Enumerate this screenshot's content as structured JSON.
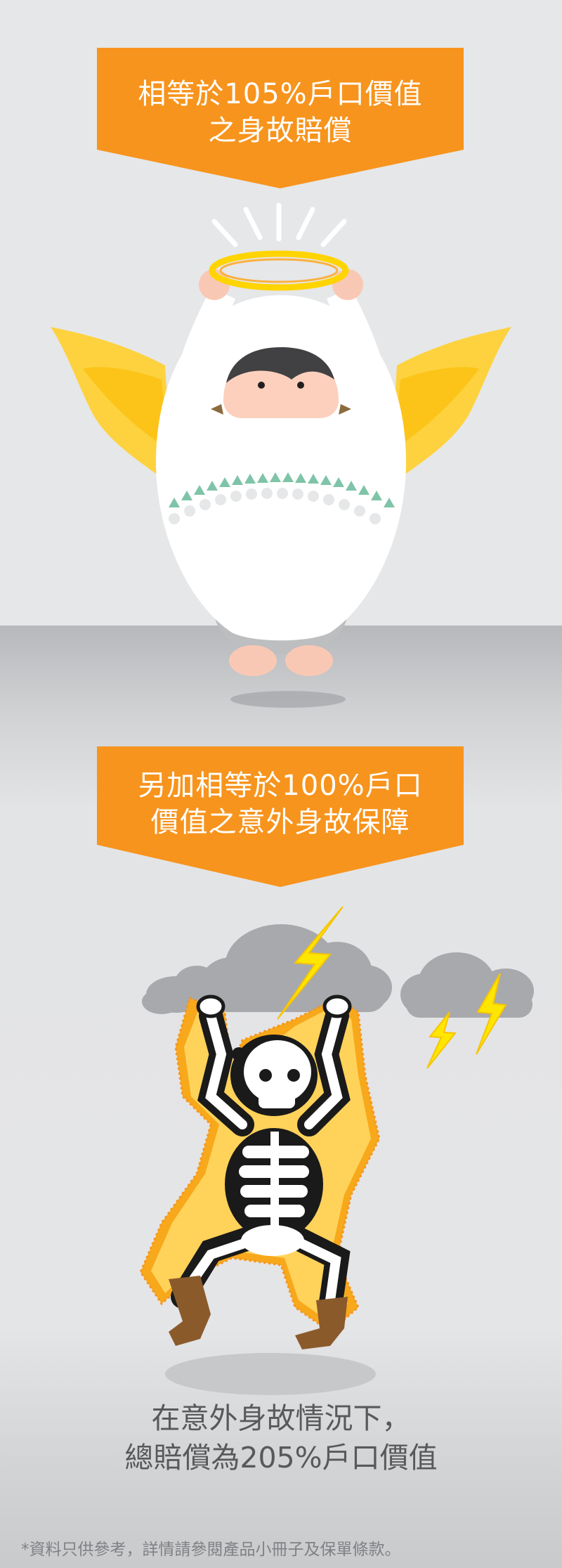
{
  "banner1": {
    "line1": "相等於105%戶口價值",
    "line2": "之身故賠償"
  },
  "banner2": {
    "line1": "另加相等於100%戶口",
    "line2": "價值之意外身故保障"
  },
  "summary": {
    "line1": "在意外身故情況下，",
    "line2": "總賠償為205%戶口價值"
  },
  "disclaimer": "*資料只供參考，詳情請參閱產品小冊子及保單條款。",
  "colors": {
    "banner_orange": "#f7941d",
    "halo_yellow": "#ffd400",
    "wing_yellow": "#fdd23e",
    "lightning_yellow": "#ffe600",
    "cloud_gray": "#a7a9ac",
    "skeleton_black": "#1a1a1a",
    "boot_brown": "#8b5a2b"
  },
  "illustrations": {
    "top": "angel-icon",
    "bottom": "electrocuted-skeleton-icon"
  }
}
